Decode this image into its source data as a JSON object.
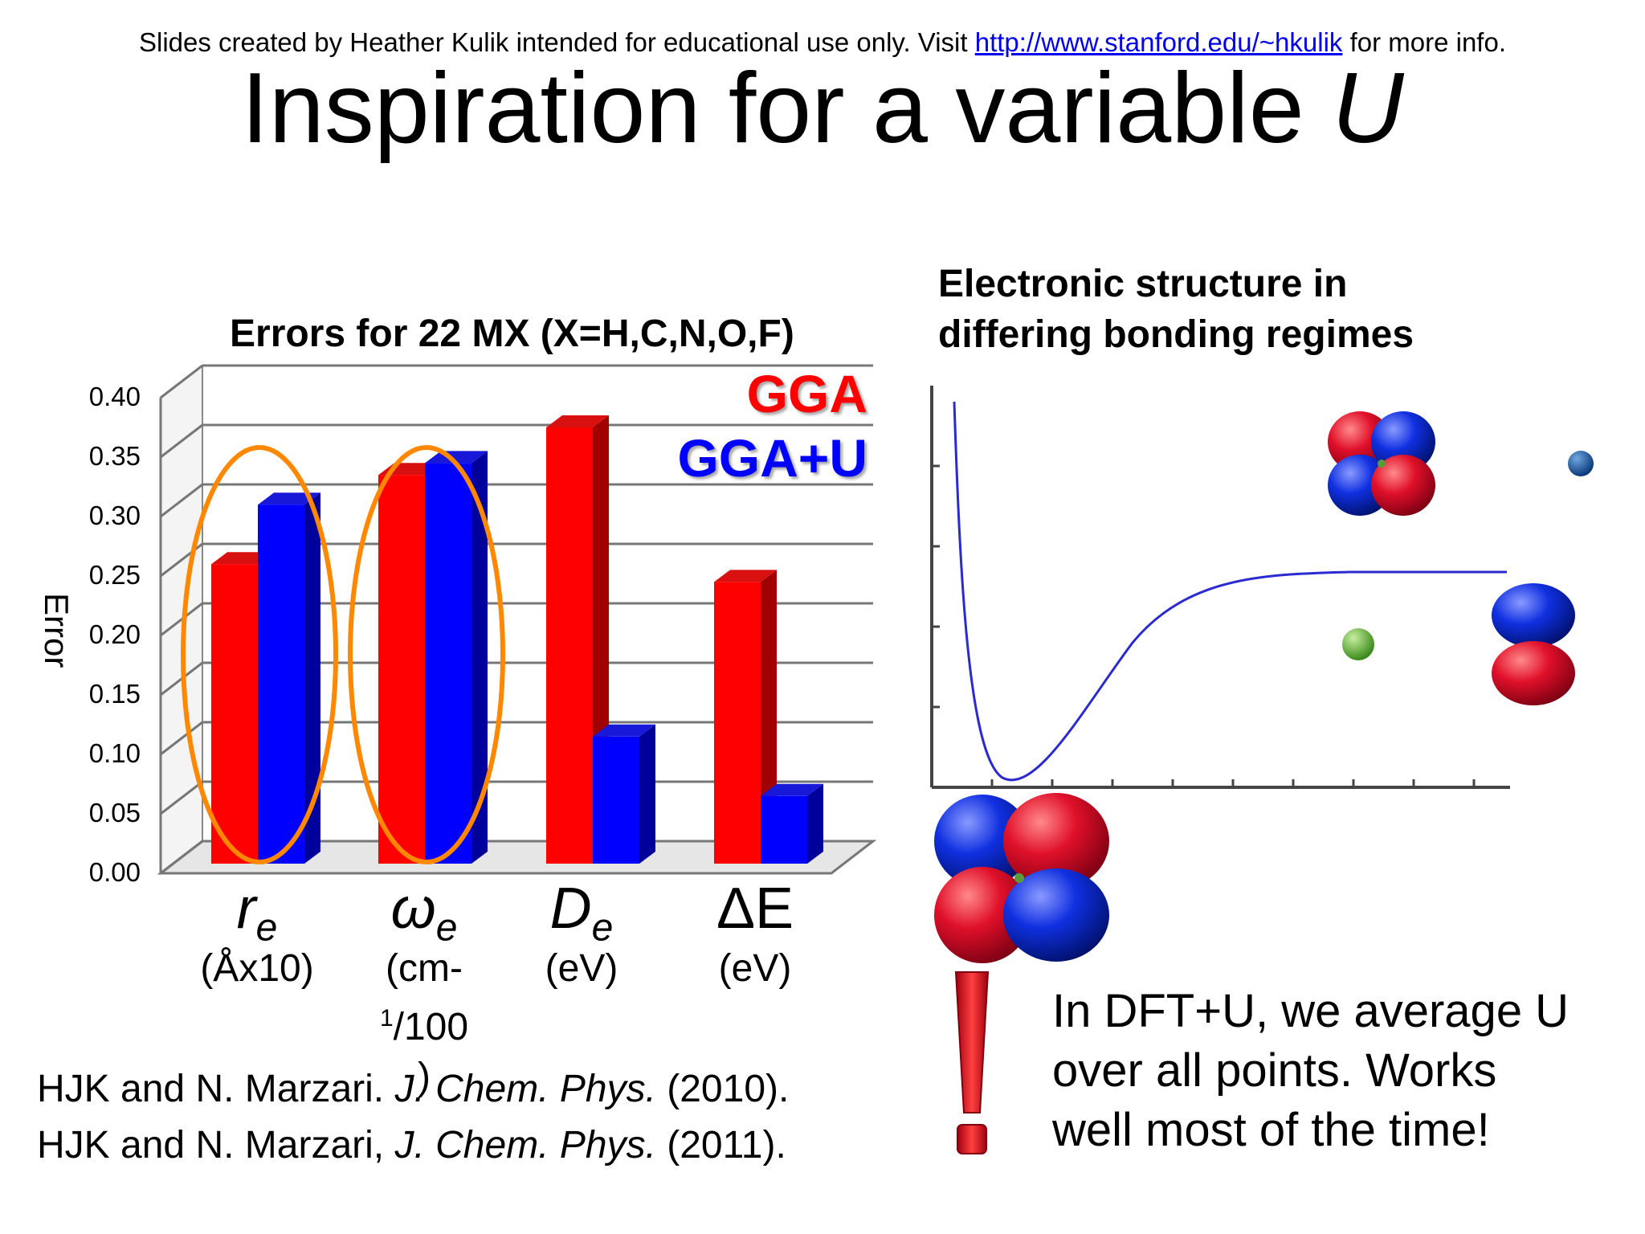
{
  "header": {
    "credit_prefix": "Slides created by Heather Kulik intended for educational use only. Visit",
    "credit_link": "http://www.stanford.edu/~hkulik",
    "credit_suffix": "for more info.",
    "title_main": "Inspiration for a variable",
    "title_italic": "U"
  },
  "colors": {
    "gga": "#ff0000",
    "gga_u": "#0000ff",
    "highlight": "#ff8800"
  },
  "chart_data": {
    "type": "bar",
    "title": "Errors for 22 MX (X=H,C,N,O,F)",
    "ylabel": "Error",
    "xlabel": "",
    "ylim": [
      0,
      0.4
    ],
    "yticks": [
      "0.00",
      "0.05",
      "0.10",
      "0.15",
      "0.20",
      "0.25",
      "0.30",
      "0.35",
      "0.40"
    ],
    "categories": [
      "r_e (Åx10)",
      "ω_e (cm-1/100)",
      "D_e (eV)",
      "ΔE (eV)"
    ],
    "category_symbols": [
      {
        "base": "r",
        "sub": "e"
      },
      {
        "base": "ω",
        "sub": "e"
      },
      {
        "base": "D",
        "sub": "e"
      },
      {
        "base": "ΔE",
        "sub": ""
      }
    ],
    "category_units": [
      "(Åx10)",
      "(cm-",
      "(eV)",
      "(eV)"
    ],
    "category_units_2": [
      "",
      "1/100",
      "",
      ""
    ],
    "category_units_3": [
      "",
      ")",
      "",
      ""
    ],
    "series": [
      {
        "name": "GGA",
        "values": [
          0.26,
          0.335,
          0.375,
          0.245
        ]
      },
      {
        "name": "GGA+U",
        "values": [
          0.31,
          0.345,
          0.115,
          0.065
        ]
      }
    ],
    "legend": "top-right",
    "grid": true,
    "highlighted_categories": [
      0,
      1
    ]
  },
  "right_panel": {
    "title_line1": "Electronic structure in",
    "title_line2": "differing bonding regimes"
  },
  "note": {
    "line1": "In DFT+U, we average U",
    "line2": "over all points. Works",
    "line3": "well most of the time!"
  },
  "references": [
    {
      "authors": "HJK and N. Marzari.",
      "journal": "J. Chem. Phys.",
      "year": "(2010)."
    },
    {
      "authors": "HJK and N. Marzari,",
      "journal": "J. Chem. Phys.",
      "year": "(2011)."
    }
  ]
}
